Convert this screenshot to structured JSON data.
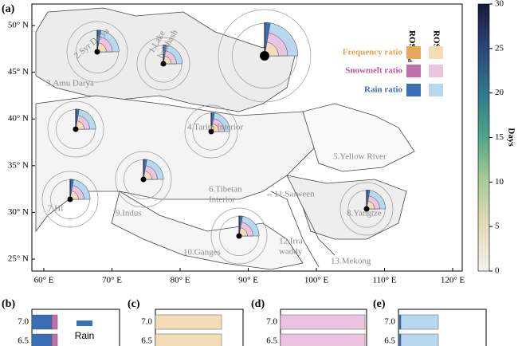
{
  "panel_label": "(a)",
  "lat_labels": [
    "50° N",
    "45° N",
    "40° N",
    "35° N",
    "30° N",
    "25° N"
  ],
  "lon_labels": [
    "60° E",
    "70° E",
    "80° E",
    "90° E",
    "100° E",
    "110° E",
    "120° E"
  ],
  "basins": [
    [
      "1.Lake",
      "balkhash"
    ],
    [
      "2.Syr Darya"
    ],
    [
      "3.Amu Darya"
    ],
    [
      "4.Tarim Interior"
    ],
    [
      "5.Yellow River"
    ],
    [
      "6.Tibetan",
      "Interior"
    ],
    [
      "7.Hi"
    ],
    [
      "8.Yangtze"
    ],
    [
      "9.Indus"
    ],
    [
      "10.Ganges"
    ],
    [
      "←11.Salween"
    ],
    [
      "12.Irra",
      "waddy"
    ],
    [
      "13.Mekong"
    ]
  ],
  "legend": {
    "header_flood": "ROS",
    "header_flood_sub": "Flood",
    "header_ros": "ROS",
    "entries": [
      "Frequency ratio",
      "Snowmelt ratio",
      "Rain ratio"
    ]
  },
  "colorbar": {
    "title": "Days",
    "lim": [
      0,
      30
    ],
    "ticks": [
      0,
      5,
      10,
      15,
      20,
      25,
      30
    ]
  },
  "subpanels": [
    {
      "label": "(b)",
      "yticks": [
        "7.0",
        "6.5"
      ],
      "legend": "Rain"
    },
    {
      "label": "(c)",
      "yticks": [
        "7.0",
        "6.5"
      ]
    },
    {
      "label": "(d)",
      "yticks": [
        "7.0",
        "6.5"
      ]
    },
    {
      "label": "(e)",
      "yticks": [
        "7.0",
        "6.5"
      ]
    }
  ]
}
